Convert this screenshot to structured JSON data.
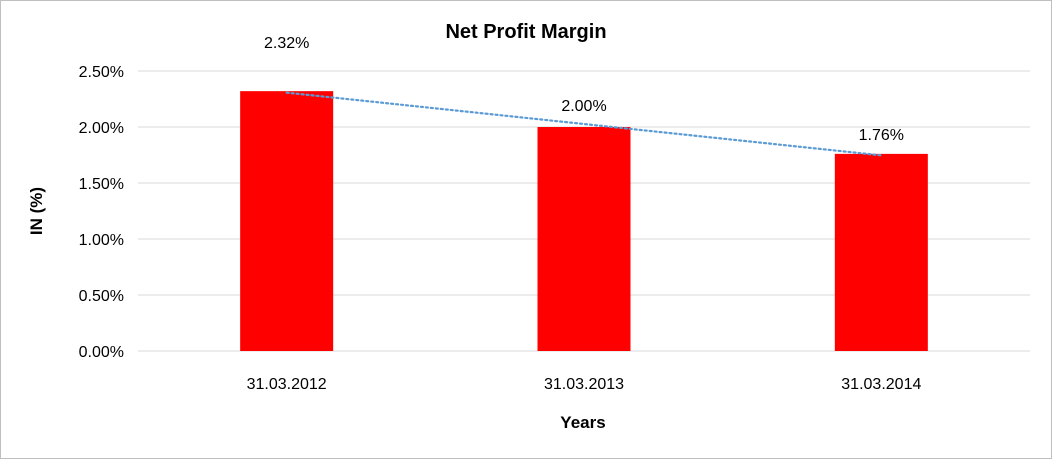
{
  "chart_data": {
    "type": "bar",
    "title": "Net Profit Margin",
    "xlabel": "Years",
    "ylabel": "IN (%)",
    "categories": [
      "31.03.2012",
      "31.03.2013",
      "31.03.2014"
    ],
    "values": [
      2.32,
      2.0,
      1.76
    ],
    "data_labels": [
      "2.32%",
      "2.00%",
      "1.76%"
    ],
    "y_ticks": [
      "0.00%",
      "0.50%",
      "1.00%",
      "1.50%",
      "2.00%",
      "2.50%"
    ],
    "y_tick_values": [
      0,
      0.5,
      1.0,
      1.5,
      2.0,
      2.5
    ],
    "ylim": [
      0,
      2.5
    ],
    "grid": true,
    "legend": "none",
    "trendline": "linear dotted",
    "colors": {
      "bar": "#ff0000",
      "trendline": "#5b9bd5",
      "grid": "#d9d9d9",
      "border": "#bfbfbf"
    }
  }
}
